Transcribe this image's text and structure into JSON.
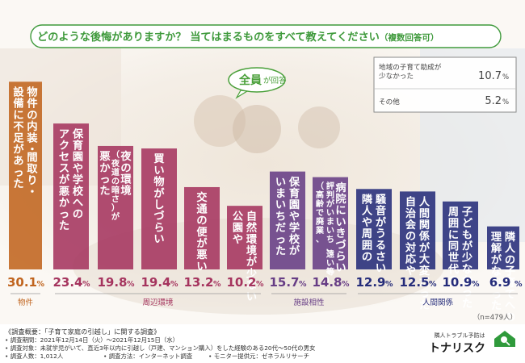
{
  "question": {
    "text": "どのような後悔がありますか？ 当てはまるものをすべて教えてください",
    "note": "（複数回答可）"
  },
  "badge": {
    "all": "全員",
    "suffix": "が回答"
  },
  "side_list": [
    {
      "label_lines": [
        "地域の子育て助成が",
        "少なかった"
      ],
      "value": "10.7",
      "unit": "%"
    },
    {
      "label_lines": [
        "その他"
      ],
      "value": "5.2",
      "unit": "%"
    }
  ],
  "sample_size": "（n=479人）",
  "colors": {
    "orange": "#c0641e",
    "pink": "#a5345e",
    "purple": "#673d85",
    "navy": "#252c7a",
    "title_green": "#3f9a3c",
    "badge_green": "#4aa03a"
  },
  "chart_data": {
    "type": "bar",
    "unit": "%",
    "categories": [
      "物件の内装・間取り・設備に不足があった",
      "保育園や学校へのアクセスが悪かった",
      "夜の環境（夜道の暗さ）が悪かった",
      "買い物がしづらい",
      "交通の便が悪い",
      "自然環境が少ない・公園や",
      "保育園や学校がいまいちだった",
      "病院にいきづらい（高齢で廃業、評判がいまいち、遠い等）",
      "騒音がうるさい・隣人や周囲の",
      "人間関係が大変だった・自治会の対応や",
      "子どもが少なかった・周囲に同世代の",
      "隣人の子育てへの理解がなかった"
    ],
    "values": [
      30.1,
      23.4,
      19.8,
      19.4,
      13.2,
      10.2,
      15.7,
      14.8,
      12.9,
      12.5,
      10.9,
      6.9
    ],
    "value_labels": [
      "30.1",
      "23.4",
      "19.8",
      "19.4",
      "13.2",
      "10.2",
      "15.7",
      "14.8",
      "12.9",
      "12.5",
      "10.9",
      "6.9"
    ],
    "groups": [
      {
        "name": "物件",
        "color": "#c0641e",
        "members": [
          0
        ]
      },
      {
        "name": "周辺環境",
        "color": "#a5345e",
        "members": [
          1,
          2,
          3,
          4,
          5
        ]
      },
      {
        "name": "施設相性",
        "color": "#673d85",
        "members": [
          6,
          7
        ]
      },
      {
        "name": "人間関係",
        "color": "#252c7a",
        "members": [
          8,
          9,
          10,
          11
        ]
      }
    ],
    "bar_texts": [
      {
        "main": [
          "物件の内装・間取り・",
          "設備に不足があった"
        ]
      },
      {
        "main": [
          "保育園や学校への",
          "アクセスが悪かった"
        ]
      },
      {
        "main": [
          "夜の環境",
          "悪かった"
        ],
        "sub": [
          "（夜道の暗さ）が"
        ]
      },
      {
        "main": [
          "買い物がしづらい"
        ]
      },
      {
        "main": [
          "交通の便が悪い"
        ]
      },
      {
        "main": [
          "自然環境が少ない",
          "公園や"
        ]
      },
      {
        "main": [
          "保育園や学校が",
          "いまいちだった"
        ]
      },
      {
        "main": [
          "病院にいきづらい"
        ],
        "sub": [
          "評判がいまいち、遠い等）",
          "（高齢で廃業、"
        ]
      },
      {
        "main": [
          "騒音がうるさい",
          "隣人や周囲の"
        ]
      },
      {
        "main": [
          "人間関係が大変だった",
          "自治会の対応や"
        ]
      },
      {
        "main": [
          "子どもが少なかった",
          "周囲に同世代の"
        ]
      },
      {
        "main": [
          "隣人の子育てへの",
          "理解がなかった"
        ]
      }
    ]
  },
  "footer": {
    "survey_title": "《調査概要：「子育て家庭の引越し」に関する調査》",
    "period": "• 調査期間：2021年12月14日（火）～2021年12月15日（水）",
    "target": "• 調査対象：未就学児がいて、直近3年以内に引越し（戸建、マンション購入）をした経験のある20代～50代の男女",
    "count": "• 調査人数：1,012人",
    "method": "• 調査方法：インターネット調査",
    "monitor": "• モニター提供元：ゼネラルリサーチ",
    "brand_small": "隣人トラブル予防は",
    "brand_name": "トナリスク"
  }
}
